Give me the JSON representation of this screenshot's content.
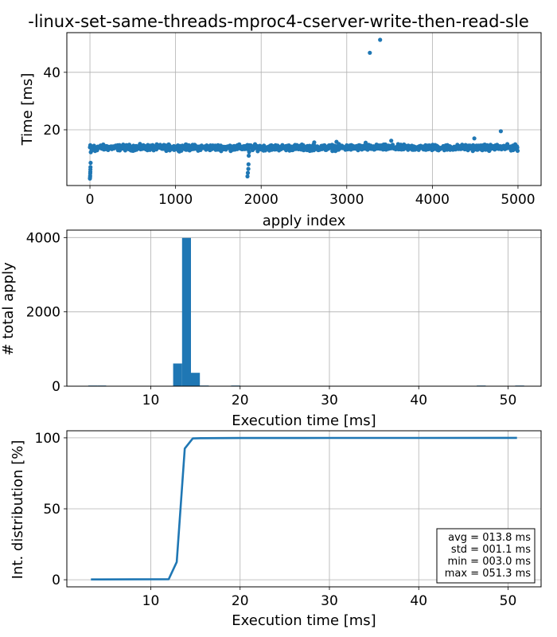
{
  "title": "-linux-set-same-threads-mproc4-cserver-write-then-read-sle",
  "accent_color": "#1f77b4",
  "chart_data": [
    {
      "type": "scatter",
      "xlabel": "apply index",
      "ylabel": "Time [ms]",
      "xlim": [
        -270,
        5270
      ],
      "ylim": [
        0.6,
        53.8
      ],
      "xticks": [
        0,
        1000,
        2000,
        3000,
        4000,
        5000
      ],
      "yticks": [
        20,
        40
      ],
      "grid": true,
      "baseline": {
        "n": 5000,
        "center_ms": 13.8,
        "spread_ms": 0.6
      },
      "points": [
        [
          0,
          3.0
        ],
        [
          1,
          3.5
        ],
        [
          2,
          4.0
        ],
        [
          3,
          4.8
        ],
        [
          4,
          5.4
        ],
        [
          5,
          6.2
        ],
        [
          6,
          7.0
        ],
        [
          8,
          8.5
        ],
        [
          10,
          12.2
        ],
        [
          20,
          12.8
        ],
        [
          60,
          12.6
        ],
        [
          1840,
          3.8
        ],
        [
          1845,
          5.0
        ],
        [
          1850,
          6.4
        ],
        [
          1852,
          8.0
        ],
        [
          1855,
          11.0
        ],
        [
          1860,
          12.3
        ],
        [
          2620,
          15.6
        ],
        [
          2880,
          15.8
        ],
        [
          3220,
          15.5
        ],
        [
          3520,
          16.2
        ],
        [
          4490,
          17.0
        ],
        [
          4800,
          19.5
        ],
        [
          3270,
          46.8
        ],
        [
          3390,
          51.3
        ]
      ]
    },
    {
      "type": "bar",
      "xlabel": "Execution time [ms]",
      "ylabel": "# total apply",
      "xlim": [
        0.6,
        53.7
      ],
      "ylim": [
        0,
        4200
      ],
      "xticks": [
        10,
        20,
        30,
        40,
        50
      ],
      "yticks": [
        0,
        2000,
        4000
      ],
      "grid": true,
      "bins": [
        {
          "x0": 3.0,
          "x1": 4.0,
          "count": 10
        },
        {
          "x0": 4.0,
          "x1": 5.0,
          "count": 6
        },
        {
          "x0": 12.5,
          "x1": 13.5,
          "count": 610
        },
        {
          "x0": 13.5,
          "x1": 14.5,
          "count": 3990
        },
        {
          "x0": 14.5,
          "x1": 15.5,
          "count": 360
        },
        {
          "x0": 15.5,
          "x1": 16.5,
          "count": 12
        },
        {
          "x0": 19.0,
          "x1": 20.0,
          "count": 1
        },
        {
          "x0": 46.5,
          "x1": 47.5,
          "count": 1
        },
        {
          "x0": 50.8,
          "x1": 51.8,
          "count": 1
        }
      ]
    },
    {
      "type": "line",
      "xlabel": "Execution time [ms]",
      "ylabel": "Int. distribution [%]",
      "xlim": [
        0.6,
        53.7
      ],
      "ylim": [
        -5,
        105
      ],
      "xticks": [
        10,
        20,
        30,
        40,
        50
      ],
      "yticks": [
        0,
        50,
        100
      ],
      "grid": true,
      "x": [
        3.3,
        8.0,
        12.0,
        12.9,
        13.8,
        14.7,
        15.6,
        20.0,
        30.0,
        40.0,
        51.0
      ],
      "y": [
        0.2,
        0.3,
        0.4,
        12.5,
        92.5,
        99.6,
        99.8,
        99.9,
        99.95,
        99.97,
        100.0
      ],
      "stats": [
        "avg = 013.8 ms",
        "std = 001.1 ms",
        "min = 003.0 ms",
        "max = 051.3 ms"
      ]
    }
  ]
}
